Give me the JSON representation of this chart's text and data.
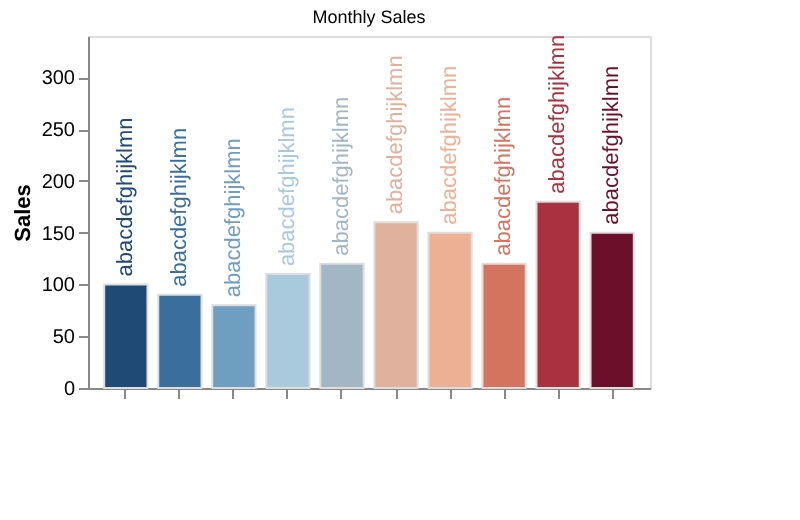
{
  "chart_data": {
    "type": "bar",
    "title": "Monthly Sales",
    "ylabel": "Sales",
    "categories": [
      null,
      null,
      null,
      null,
      null,
      null,
      null,
      null,
      null,
      null
    ],
    "values": [
      100,
      90,
      80,
      110,
      120,
      160,
      150,
      120,
      180,
      150
    ],
    "colors": [
      "#1f4a75",
      "#3a6f9c",
      "#6e9ec0",
      "#a9c9dc",
      "#a3b6c4",
      "#e0b19c",
      "#eeb094",
      "#d4735e",
      "#a8323f",
      "#6b0f2a"
    ],
    "value_labels": [
      "abacdefghijklmn",
      "abacdefghijklmn",
      "abacdefghijklmn",
      "abacdefghijklmn",
      "abacdefghijklmn",
      "abacdefghijklmn",
      "abacdefghijklmn",
      "abacdefghijklmn",
      "abacdefghijklmn",
      "abacdefghijklmn"
    ],
    "ylim": [
      0,
      340
    ],
    "yticks": [
      0,
      50,
      100,
      150,
      200,
      250,
      300
    ],
    "grid": false
  }
}
